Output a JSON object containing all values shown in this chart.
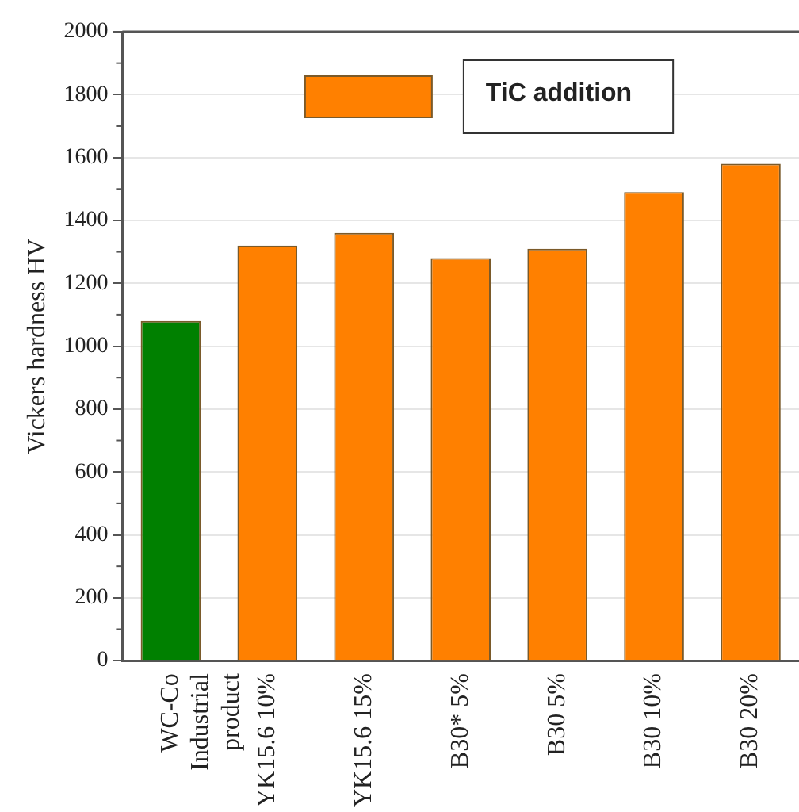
{
  "chart_data": {
    "type": "bar",
    "ylabel": "Vickers hardness HV",
    "categories": [
      "WC-Co\nIndustrial\nproduct",
      "YK15.6 10%",
      "YK15.6 15%",
      "B30* 5%",
      "B30 5%",
      "B30 10%",
      "B30 20%"
    ],
    "series": [
      {
        "color": "#008000",
        "values": [
          1080,
          null,
          null,
          null,
          null,
          null,
          null
        ]
      },
      {
        "name": "TiC addition",
        "color": "#ff8000",
        "values": [
          null,
          1320,
          1360,
          1280,
          1310,
          1490,
          1580
        ]
      }
    ],
    "ylim": [
      0,
      2000
    ],
    "yticks": [
      0,
      200,
      400,
      600,
      800,
      1000,
      1200,
      1400,
      1600,
      1800,
      2000
    ],
    "grid": "y",
    "legend": "top"
  }
}
